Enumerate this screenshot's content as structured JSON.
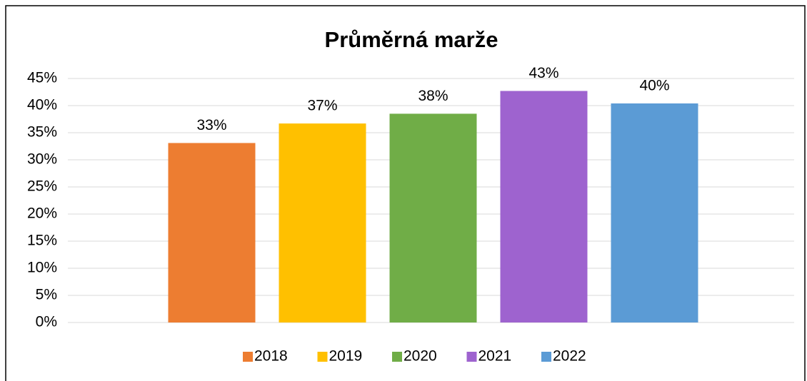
{
  "chart_data": {
    "type": "bar",
    "title": "Průměrná marže",
    "categories": [
      null
    ],
    "series": [
      {
        "name": "2018",
        "color": "#ed7d31",
        "values": [
          33.1
        ],
        "value_labels": [
          "33%"
        ]
      },
      {
        "name": "2019",
        "color": "#ffc000",
        "values": [
          36.7
        ],
        "value_labels": [
          "37%"
        ]
      },
      {
        "name": "2020",
        "color": "#70ad47",
        "values": [
          38.5
        ],
        "value_labels": [
          "38%"
        ]
      },
      {
        "name": "2021",
        "color": "#9e63cf",
        "values": [
          42.7
        ],
        "value_labels": [
          "43%"
        ]
      },
      {
        "name": "2022",
        "color": "#5b9bd5",
        "values": [
          40.4
        ],
        "value_labels": [
          "40%"
        ]
      }
    ],
    "ylim": [
      0,
      45
    ],
    "yticks": [
      {
        "value": 0,
        "label": "0%"
      },
      {
        "value": 5,
        "label": "5%"
      },
      {
        "value": 10,
        "label": "10%"
      },
      {
        "value": 15,
        "label": "15%"
      },
      {
        "value": 20,
        "label": "20%"
      },
      {
        "value": 25,
        "label": "25%"
      },
      {
        "value": 30,
        "label": "30%"
      },
      {
        "value": 35,
        "label": "35%"
      },
      {
        "value": 40,
        "label": "40%"
      },
      {
        "value": 45,
        "label": "45%"
      }
    ],
    "grid": true,
    "legend": "bottom"
  }
}
